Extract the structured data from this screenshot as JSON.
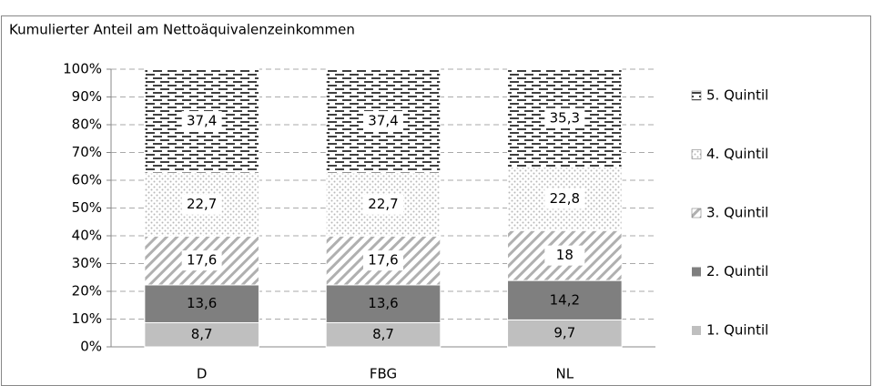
{
  "chart_data": {
    "type": "stacked_bar",
    "title": "Kumulierter Anteil am Nettoäquivalenzeinkommen",
    "categories": [
      "D",
      "FBG",
      "NL"
    ],
    "series": [
      {
        "name": "1. Quintil",
        "color": "#bfbfbf",
        "pattern": "solid",
        "values": [
          8.7,
          8.7,
          9.7
        ],
        "value_labels": [
          "8,7",
          "8,7",
          "9,7"
        ]
      },
      {
        "name": "2. Quintil",
        "color": "#7f7f7f",
        "pattern": "solid",
        "values": [
          13.6,
          13.6,
          14.2
        ],
        "value_labels": [
          "13,6",
          "13,6",
          "14,2"
        ]
      },
      {
        "name": "3. Quintil",
        "color": "#b0b0b0",
        "pattern": "diagonal",
        "values": [
          17.6,
          17.6,
          18
        ],
        "value_labels": [
          "17,6",
          "17,6",
          "18"
        ]
      },
      {
        "name": "4. Quintil",
        "color": "#b8b8b8",
        "pattern": "cross",
        "values": [
          22.7,
          22.7,
          22.8
        ],
        "value_labels": [
          "22,7",
          "22,7",
          "22,8"
        ]
      },
      {
        "name": "5. Quintil",
        "color": "#404040",
        "pattern": "dash",
        "values": [
          37.4,
          37.4,
          35.3
        ],
        "value_labels": [
          "37,4",
          "37,4",
          "35,3"
        ]
      }
    ],
    "ylim": [
      0,
      100
    ],
    "yticks": [
      {
        "value": 0,
        "label": "0%"
      },
      {
        "value": 10,
        "label": "10%"
      },
      {
        "value": 20,
        "label": "20%"
      },
      {
        "value": 30,
        "label": "30%"
      },
      {
        "value": 40,
        "label": "40%"
      },
      {
        "value": 50,
        "label": "50%"
      },
      {
        "value": 60,
        "label": "60%"
      },
      {
        "value": 70,
        "label": "70%"
      },
      {
        "value": 80,
        "label": "80%"
      },
      {
        "value": 90,
        "label": "90%"
      },
      {
        "value": 100,
        "label": "100%"
      }
    ],
    "grid": true,
    "legend": "right"
  }
}
